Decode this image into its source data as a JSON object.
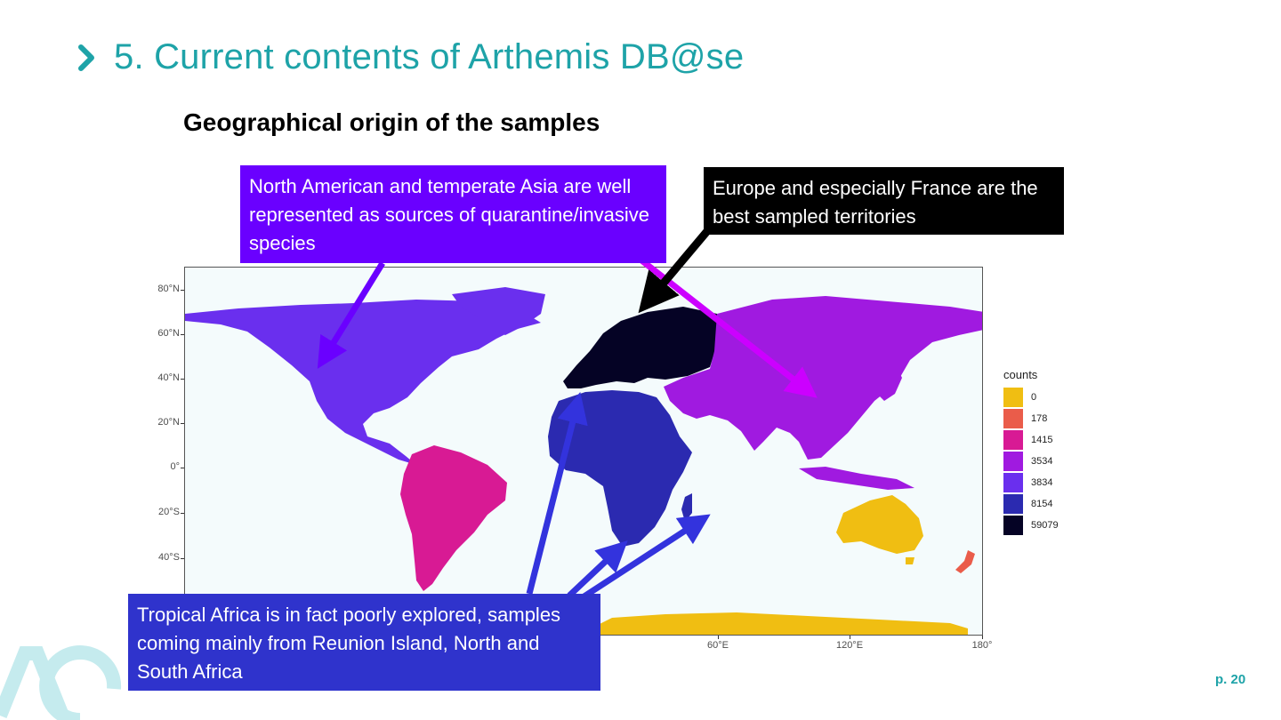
{
  "slide": {
    "title": "5. Current contents of Arthemis DB@se",
    "subtitle": "Geographical origin of the samples",
    "page": "p. 20",
    "accent_color": "#1ea3a8"
  },
  "callouts": {
    "americas_asia": "North American and temperate Asia are well represented as sources of quarantine/invasive species",
    "europe": "Europe and especially France are the best sampled territories",
    "africa": "Tropical Africa is in fact poorly explored, samples coming mainly from Reunion Island, North and South Africa"
  },
  "map": {
    "y_axis_labels": [
      "80°N",
      "60°N",
      "40°N",
      "20°N",
      "0°",
      "20°S",
      "40°S"
    ],
    "x_axis_labels": [
      "60°E",
      "120°E",
      "180°"
    ],
    "legend": {
      "title": "counts",
      "items": [
        {
          "label": "0",
          "color": "#f0be12"
        },
        {
          "label": "178",
          "color": "#ea5c4a"
        },
        {
          "label": "1415",
          "color": "#d81a94"
        },
        {
          "label": "3534",
          "color": "#a01ae0"
        },
        {
          "label": "3834",
          "color": "#6a2fee"
        },
        {
          "label": "8154",
          "color": "#2b2ab0"
        },
        {
          "label": "59079",
          "color": "#050325"
        }
      ]
    },
    "regions": [
      {
        "name": "North America",
        "count": "3834"
      },
      {
        "name": "South America",
        "count": "1415"
      },
      {
        "name": "Europe",
        "count": "59079"
      },
      {
        "name": "Africa",
        "count": "8154"
      },
      {
        "name": "Asia",
        "count": "3534"
      },
      {
        "name": "Australia",
        "count": "0"
      },
      {
        "name": "Antarctica",
        "count": "0"
      },
      {
        "name": "New Zealand",
        "count": "178"
      }
    ]
  }
}
